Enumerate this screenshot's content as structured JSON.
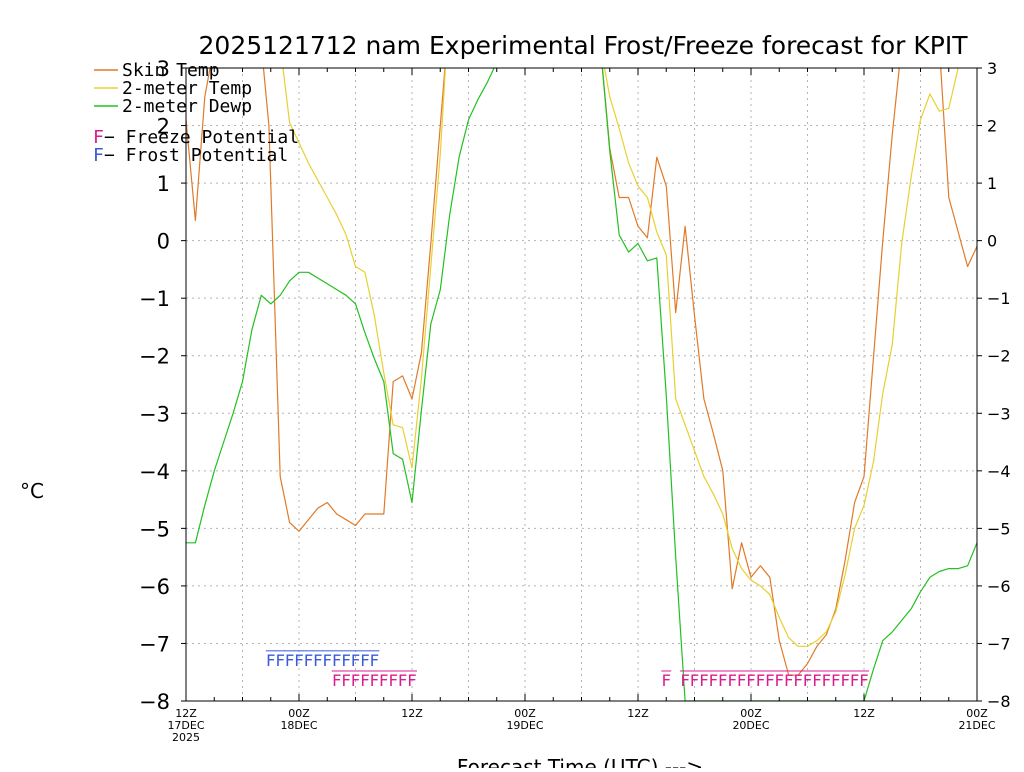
{
  "chart_data": {
    "type": "line",
    "title": "2025121712 nam Experimental Frost/Freeze forecast for KPIT",
    "ylabel": "°C",
    "xlabel": "Forecast Time (UTC) --->",
    "ylim": [
      -8,
      3
    ],
    "yticks": [
      {
        "value": 3,
        "label": "3"
      },
      {
        "value": 2,
        "label": "2"
      },
      {
        "value": 1,
        "label": "1"
      },
      {
        "value": 0,
        "label": "0"
      },
      {
        "value": -1,
        "label": "−1"
      },
      {
        "value": -2,
        "label": "−2"
      },
      {
        "value": -3,
        "label": "−3"
      },
      {
        "value": -4,
        "label": "−4"
      },
      {
        "value": -5,
        "label": "−5"
      },
      {
        "value": -6,
        "label": "−6"
      },
      {
        "value": -7,
        "label": "−7"
      },
      {
        "value": -8,
        "label": "−8"
      }
    ],
    "xlim": [
      0,
      84
    ],
    "xticks": [
      {
        "hour": 0,
        "lines": [
          "12Z",
          "17DEC",
          "2025"
        ]
      },
      {
        "hour": 12,
        "lines": [
          "00Z",
          "18DEC"
        ]
      },
      {
        "hour": 24,
        "lines": [
          "12Z"
        ]
      },
      {
        "hour": 36,
        "lines": [
          "00Z",
          "19DEC"
        ]
      },
      {
        "hour": 48,
        "lines": [
          "12Z"
        ]
      },
      {
        "hour": 60,
        "lines": [
          "00Z",
          "20DEC"
        ]
      },
      {
        "hour": 72,
        "lines": [
          "12Z"
        ]
      },
      {
        "hour": 84,
        "lines": [
          "00Z",
          "21DEC"
        ]
      }
    ],
    "grid": true,
    "legend": {
      "position": "top-left",
      "entries": [
        {
          "name": "Skin Temp",
          "color": "#e07a28"
        },
        {
          "name": "2-meter Temp",
          "color": "#e8d030"
        },
        {
          "name": "2-meter Dewp",
          "color": "#22c022"
        }
      ],
      "markers": [
        {
          "glyph": "F",
          "name": " − Freeze Potential",
          "color": "#d81e8e"
        },
        {
          "glyph": "F",
          "name": " − Frost Potential",
          "color": "#3a5ad8"
        }
      ]
    },
    "series": [
      {
        "name": "Skin Temp",
        "color": "#e07a28",
        "points": [
          [
            0,
            2.1
          ],
          [
            1,
            0.35
          ],
          [
            2,
            2.5
          ],
          [
            3,
            3.4
          ],
          [
            8,
            3.4
          ],
          [
            8.8,
            2.0
          ],
          [
            10,
            -4.1
          ],
          [
            11,
            -4.9
          ],
          [
            12,
            -5.05
          ],
          [
            13,
            -4.85
          ],
          [
            14,
            -4.65
          ],
          [
            15,
            -4.55
          ],
          [
            16,
            -4.75
          ],
          [
            17,
            -4.85
          ],
          [
            18,
            -4.95
          ],
          [
            19,
            -4.75
          ],
          [
            20,
            -4.75
          ],
          [
            21,
            -4.75
          ],
          [
            22,
            -2.45
          ],
          [
            23,
            -2.35
          ],
          [
            24,
            -2.75
          ],
          [
            25,
            -1.95
          ],
          [
            26,
            -0.05
          ],
          [
            27,
            2.0
          ],
          [
            27.7,
            3.4
          ],
          [
            42,
            3.4
          ],
          [
            44,
            3.4
          ],
          [
            45,
            1.6
          ],
          [
            46,
            0.75
          ],
          [
            47,
            0.75
          ],
          [
            48,
            0.25
          ],
          [
            49,
            0.05
          ],
          [
            50,
            1.45
          ],
          [
            51,
            0.95
          ],
          [
            52,
            -1.25
          ],
          [
            53,
            0.25
          ],
          [
            54,
            -1.3
          ],
          [
            55,
            -2.75
          ],
          [
            56,
            -3.35
          ],
          [
            57,
            -4.0
          ],
          [
            58,
            -6.05
          ],
          [
            59,
            -5.25
          ],
          [
            60,
            -5.85
          ],
          [
            61,
            -5.65
          ],
          [
            62,
            -5.85
          ],
          [
            63,
            -6.95
          ],
          [
            64,
            -7.55
          ],
          [
            65,
            -7.55
          ],
          [
            66,
            -7.35
          ],
          [
            67,
            -7.05
          ],
          [
            68,
            -6.85
          ],
          [
            69,
            -6.4
          ],
          [
            70,
            -5.55
          ],
          [
            71,
            -4.55
          ],
          [
            72,
            -4.1
          ],
          [
            73,
            -2.05
          ],
          [
            74,
            0.0
          ],
          [
            75,
            1.85
          ],
          [
            76,
            3.4
          ],
          [
            80,
            3.4
          ],
          [
            81,
            0.75
          ],
          [
            82,
            0.15
          ],
          [
            83,
            -0.45
          ],
          [
            84,
            -0.1
          ]
        ]
      },
      {
        "name": "2-meter Temp",
        "color": "#e8d030",
        "points": [
          [
            0,
            3.4
          ],
          [
            10,
            3.4
          ],
          [
            11,
            2.05
          ],
          [
            12,
            1.7
          ],
          [
            13,
            1.35
          ],
          [
            14,
            1.05
          ],
          [
            15,
            0.75
          ],
          [
            16,
            0.45
          ],
          [
            17,
            0.1
          ],
          [
            18,
            -0.45
          ],
          [
            19,
            -0.55
          ],
          [
            20,
            -1.3
          ],
          [
            21,
            -2.3
          ],
          [
            22,
            -3.2
          ],
          [
            23,
            -3.25
          ],
          [
            24,
            -3.95
          ],
          [
            25,
            -2.4
          ],
          [
            26,
            -0.45
          ],
          [
            27,
            1.5
          ],
          [
            27.7,
            3.4
          ],
          [
            42,
            3.4
          ],
          [
            44,
            3.4
          ],
          [
            45,
            2.5
          ],
          [
            46,
            1.95
          ],
          [
            47,
            1.35
          ],
          [
            48,
            0.95
          ],
          [
            49,
            0.75
          ],
          [
            50,
            0.15
          ],
          [
            51,
            -0.25
          ],
          [
            52,
            -2.75
          ],
          [
            53,
            -3.2
          ],
          [
            54,
            -3.65
          ],
          [
            55,
            -4.1
          ],
          [
            56,
            -4.4
          ],
          [
            57,
            -4.75
          ],
          [
            58,
            -5.35
          ],
          [
            59,
            -5.7
          ],
          [
            60,
            -5.9
          ],
          [
            61,
            -6.0
          ],
          [
            62,
            -6.15
          ],
          [
            63,
            -6.55
          ],
          [
            64,
            -6.9
          ],
          [
            65,
            -7.05
          ],
          [
            66,
            -7.05
          ],
          [
            67,
            -6.95
          ],
          [
            68,
            -6.8
          ],
          [
            69,
            -6.45
          ],
          [
            70,
            -5.8
          ],
          [
            71,
            -5.0
          ],
          [
            72,
            -4.6
          ],
          [
            73,
            -3.85
          ],
          [
            74,
            -2.65
          ],
          [
            75,
            -1.8
          ],
          [
            76,
            -0.05
          ],
          [
            77,
            1.1
          ],
          [
            78,
            2.1
          ],
          [
            79,
            2.55
          ],
          [
            80,
            2.25
          ],
          [
            81,
            2.3
          ],
          [
            82,
            3.0
          ],
          [
            83,
            3.4
          ],
          [
            84,
            3.4
          ]
        ]
      },
      {
        "name": "2-meter Dewp",
        "color": "#22c022",
        "points": [
          [
            0,
            -5.25
          ],
          [
            1,
            -5.25
          ],
          [
            2,
            -4.6
          ],
          [
            3,
            -4.0
          ],
          [
            4,
            -3.5
          ],
          [
            5,
            -3.0
          ],
          [
            6,
            -2.45
          ],
          [
            7,
            -1.55
          ],
          [
            8,
            -0.95
          ],
          [
            9,
            -1.1
          ],
          [
            10,
            -0.95
          ],
          [
            11,
            -0.7
          ],
          [
            12,
            -0.55
          ],
          [
            13,
            -0.55
          ],
          [
            14,
            -0.65
          ],
          [
            15,
            -0.75
          ],
          [
            16,
            -0.85
          ],
          [
            17,
            -0.95
          ],
          [
            18,
            -1.1
          ],
          [
            19,
            -1.6
          ],
          [
            20,
            -2.05
          ],
          [
            21,
            -2.45
          ],
          [
            22,
            -3.7
          ],
          [
            23,
            -3.8
          ],
          [
            24,
            -4.55
          ],
          [
            25,
            -2.95
          ],
          [
            26,
            -1.45
          ],
          [
            27,
            -0.85
          ],
          [
            28,
            0.45
          ],
          [
            29,
            1.45
          ],
          [
            30,
            2.1
          ],
          [
            31,
            2.45
          ],
          [
            32,
            2.75
          ],
          [
            33,
            3.1
          ],
          [
            33.5,
            3.4
          ],
          [
            44,
            3.4
          ],
          [
            45,
            1.55
          ],
          [
            46,
            0.1
          ],
          [
            47,
            -0.2
          ],
          [
            48,
            -0.05
          ],
          [
            49,
            -0.35
          ],
          [
            50,
            -0.3
          ],
          [
            51,
            -2.7
          ],
          [
            52,
            -5.5
          ],
          [
            53,
            -8.0
          ],
          [
            72,
            -8.0
          ],
          [
            73,
            -7.45
          ],
          [
            74,
            -6.95
          ],
          [
            75,
            -6.8
          ],
          [
            76,
            -6.6
          ],
          [
            77,
            -6.4
          ],
          [
            78,
            -6.1
          ],
          [
            79,
            -5.85
          ],
          [
            80,
            -5.75
          ],
          [
            81,
            -5.7
          ],
          [
            82,
            -5.7
          ],
          [
            83,
            -5.65
          ],
          [
            84,
            -5.25
          ]
        ]
      }
    ],
    "frost_potential": {
      "color": "#3a5ad8",
      "y_value": -7.25,
      "glyph": "F",
      "hours": [
        9,
        10,
        11,
        12,
        13,
        14,
        15,
        16,
        17,
        18,
        19,
        20
      ]
    },
    "freeze_potential": {
      "color": "#d81e8e",
      "y_value": -7.6,
      "glyph": "F",
      "hours": [
        16,
        17,
        18,
        19,
        20,
        21,
        22,
        23,
        24,
        51,
        53,
        54,
        55,
        56,
        57,
        58,
        59,
        60,
        61,
        62,
        63,
        64,
        65,
        66,
        67,
        68,
        69,
        70,
        71,
        72
      ]
    }
  }
}
